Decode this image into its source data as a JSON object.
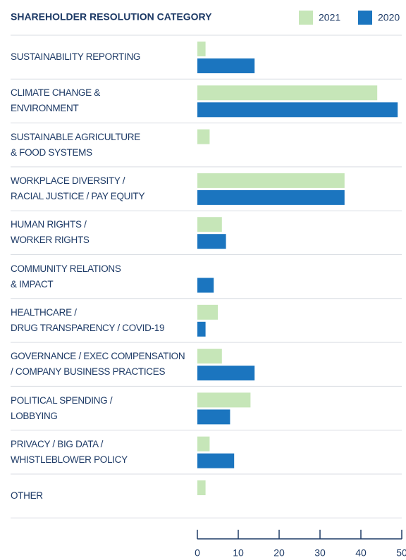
{
  "chart_data": {
    "type": "hbar",
    "title": "SHAREHOLDER RESOLUTION CATEGORY",
    "categories": [
      "SUSTAINABILITY REPORTING",
      "CLIMATE CHANGE &\nENVIRONMENT",
      "SUSTAINABLE AGRICULTURE\n& FOOD SYSTEMS",
      "WORKPLACE DIVERSITY /\nRACIAL JUSTICE / PAY EQUITY",
      "HUMAN RIGHTS /\nWORKER RIGHTS",
      "COMMUNITY RELATIONS\n& IMPACT",
      "HEALTHCARE /\nDRUG TRANSPARENCY / COVID-19",
      "GOVERNANCE / EXEC COMPENSATION\n/ COMPANY BUSINESS PRACTICES",
      "POLITICAL SPENDING /\nLOBBYING",
      "PRIVACY / BIG DATA /\nWHISTLEBLOWER POLICY",
      "OTHER"
    ],
    "series": [
      {
        "name": "2021",
        "color": "#c6e6b8",
        "values": [
          2,
          44,
          3,
          36,
          6,
          null,
          5,
          6,
          13,
          3,
          2
        ]
      },
      {
        "name": "2020",
        "color": "#1b75bf",
        "values": [
          14,
          49,
          null,
          36,
          7,
          4,
          2,
          14,
          8,
          9,
          null
        ]
      }
    ],
    "xlim": [
      0,
      50
    ],
    "xticks": [
      0,
      10,
      20,
      30,
      40,
      50
    ],
    "legend": "top-right"
  }
}
